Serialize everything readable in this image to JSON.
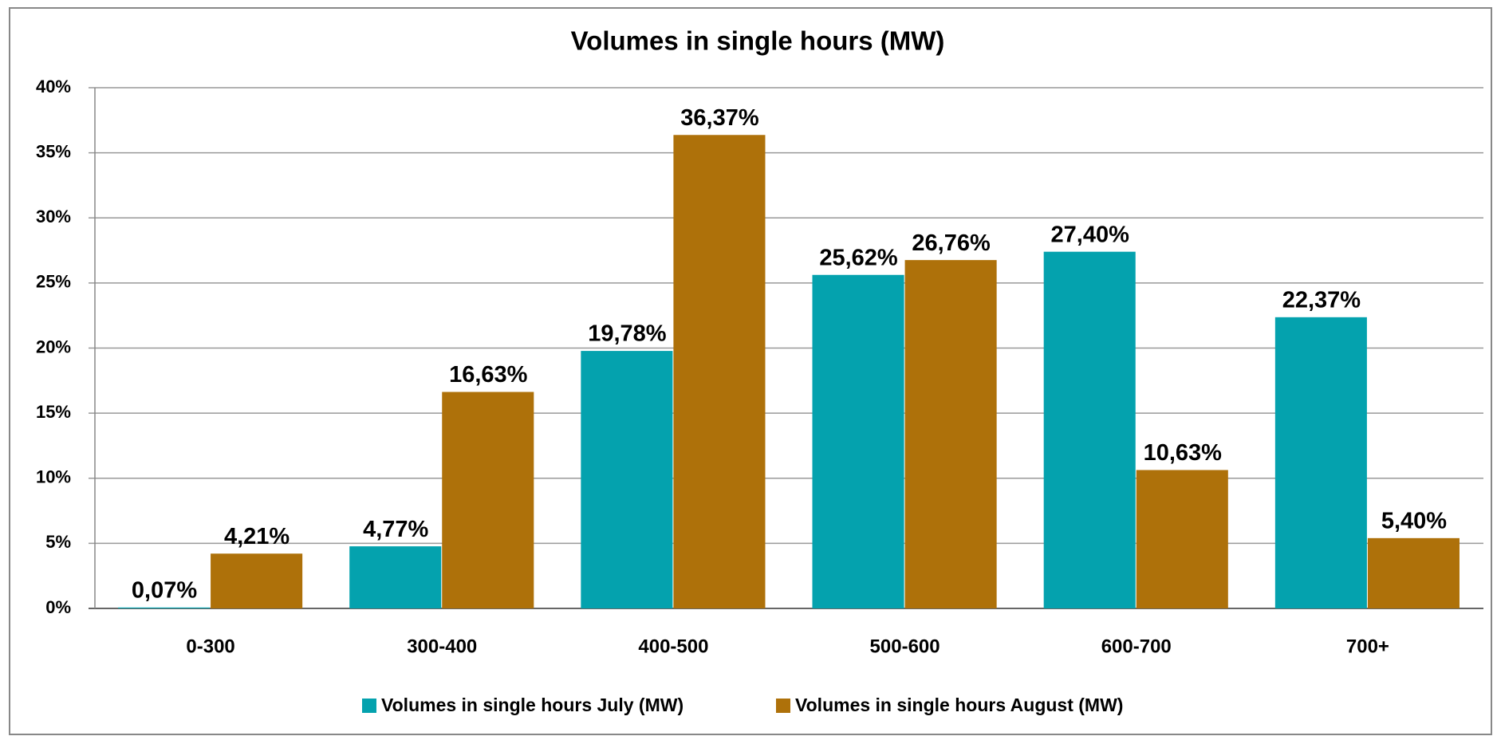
{
  "chart_data": {
    "type": "bar",
    "title": "Volumes in single hours (MW)",
    "categories": [
      "0-300",
      "300-400",
      "400-500",
      "500-600",
      "600-700",
      "700+"
    ],
    "series": [
      {
        "name": "Volumes in single hours July (MW)",
        "color": "#04a2ae",
        "values": [
          0.07,
          4.77,
          19.78,
          25.62,
          27.4,
          22.37
        ],
        "value_labels": [
          "0,07%",
          "4,77%",
          "19,78%",
          "25,62%",
          "27,40%",
          "22,37%"
        ]
      },
      {
        "name": "Volumes in single hours August (MW)",
        "color": "#ae710a",
        "values": [
          4.21,
          16.63,
          36.37,
          26.76,
          10.63,
          5.4
        ],
        "value_labels": [
          "4,21%",
          "16,63%",
          "36,37%",
          "26,76%",
          "10,63%",
          "5,40%"
        ]
      }
    ],
    "ylim": [
      0,
      40
    ],
    "yticks": [
      {
        "value": 0,
        "label": "0%"
      },
      {
        "value": 5,
        "label": "5%"
      },
      {
        "value": 10,
        "label": "10%"
      },
      {
        "value": 15,
        "label": "15%"
      },
      {
        "value": 20,
        "label": "20%"
      },
      {
        "value": 25,
        "label": "25%"
      },
      {
        "value": 30,
        "label": "30%"
      },
      {
        "value": 35,
        "label": "35%"
      },
      {
        "value": 40,
        "label": "40%"
      }
    ],
    "grid": true,
    "legend": "bottom"
  }
}
